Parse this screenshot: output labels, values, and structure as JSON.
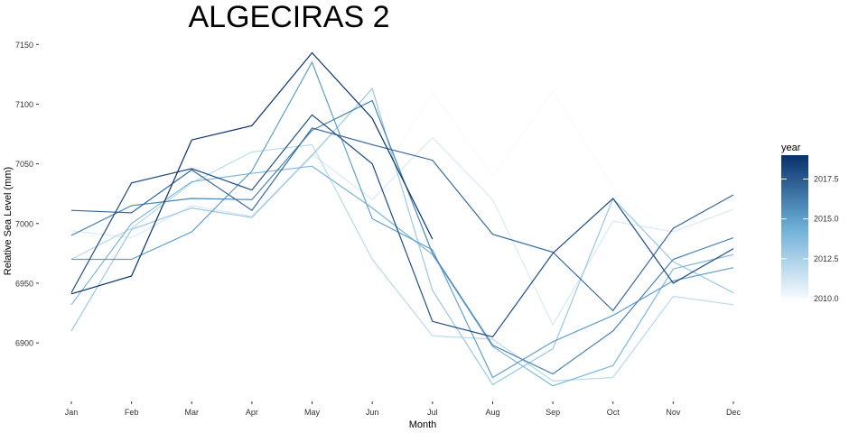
{
  "chart_data": {
    "type": "line",
    "title": "ALGECIRAS 2",
    "xlabel": "Month",
    "ylabel": "Relative Sea Level (mm)",
    "categories": [
      "Jan",
      "Feb",
      "Mar",
      "Apr",
      "May",
      "Jun",
      "Jul",
      "Aug",
      "Sep",
      "Oct",
      "Nov",
      "Dec"
    ],
    "yticks": [
      6900,
      6950,
      7000,
      7050,
      7100,
      7150
    ],
    "ylim": [
      6857,
      7157
    ],
    "grid": false,
    "legend": {
      "title": "year",
      "position": "right",
      "type": "colorbar",
      "min": 2010,
      "max": 2019,
      "ticks": [
        2010.0,
        2012.5,
        2015.0,
        2017.5
      ],
      "tick_labels": [
        "2010.0",
        "2012.5",
        "2015.0",
        "2017.5"
      ],
      "color_low": "#f7fbff",
      "color_high": "#08306b"
    },
    "series": [
      {
        "year": 2010,
        "values": [
          6988,
          6992,
          7018,
          7011,
          7082,
          7028,
          7110,
          7040,
          7111,
          7030,
          6990,
          7012
        ]
      },
      {
        "year": 2011,
        "values": [
          6994,
          6988,
          7015,
          7006,
          7058,
          7020,
          7072,
          7020,
          6915,
          7002,
          6993,
          7012
        ]
      },
      {
        "year": 2012,
        "values": [
          6970,
          6996,
          7034,
          7060,
          7066,
          6970,
          6906,
          6903,
          6868,
          6871,
          6939,
          6932
        ]
      },
      {
        "year": 2013,
        "values": [
          6910,
          6995,
          7013,
          7005,
          7057,
          7113,
          6944,
          6865,
          6895,
          7021,
          6968,
          6942
        ]
      },
      {
        "year": 2014,
        "values": [
          6932,
          7000,
          7035,
          7042,
          7048,
          7013,
          6974,
          6897,
          6864,
          6881,
          6962,
          6974
        ]
      },
      {
        "year": 2015,
        "values": [
          6970,
          6970,
          6993,
          7044,
          7135,
          7004,
          6978,
          6871,
          6901,
          6923,
          6952,
          6963
        ]
      },
      {
        "year": 2016,
        "values": [
          6990,
          7015,
          7021,
          7020,
          7078,
          7103,
          6975,
          6898,
          6874,
          6910,
          6970,
          6988
        ]
      },
      {
        "year": 2017,
        "values": [
          7011,
          7009,
          7045,
          7011,
          7080,
          7066,
          7053,
          6991,
          6976,
          6927,
          6996,
          7024
        ]
      },
      {
        "year": 2018,
        "values": [
          6942,
          7034,
          7046,
          7028,
          7091,
          7050,
          6918,
          6905,
          6975,
          7021,
          6950,
          6979
        ]
      },
      {
        "year": 2019,
        "values": [
          6941,
          6956,
          7070,
          7082,
          7143,
          7088,
          6987,
          null,
          null,
          null,
          null,
          null
        ]
      }
    ]
  }
}
